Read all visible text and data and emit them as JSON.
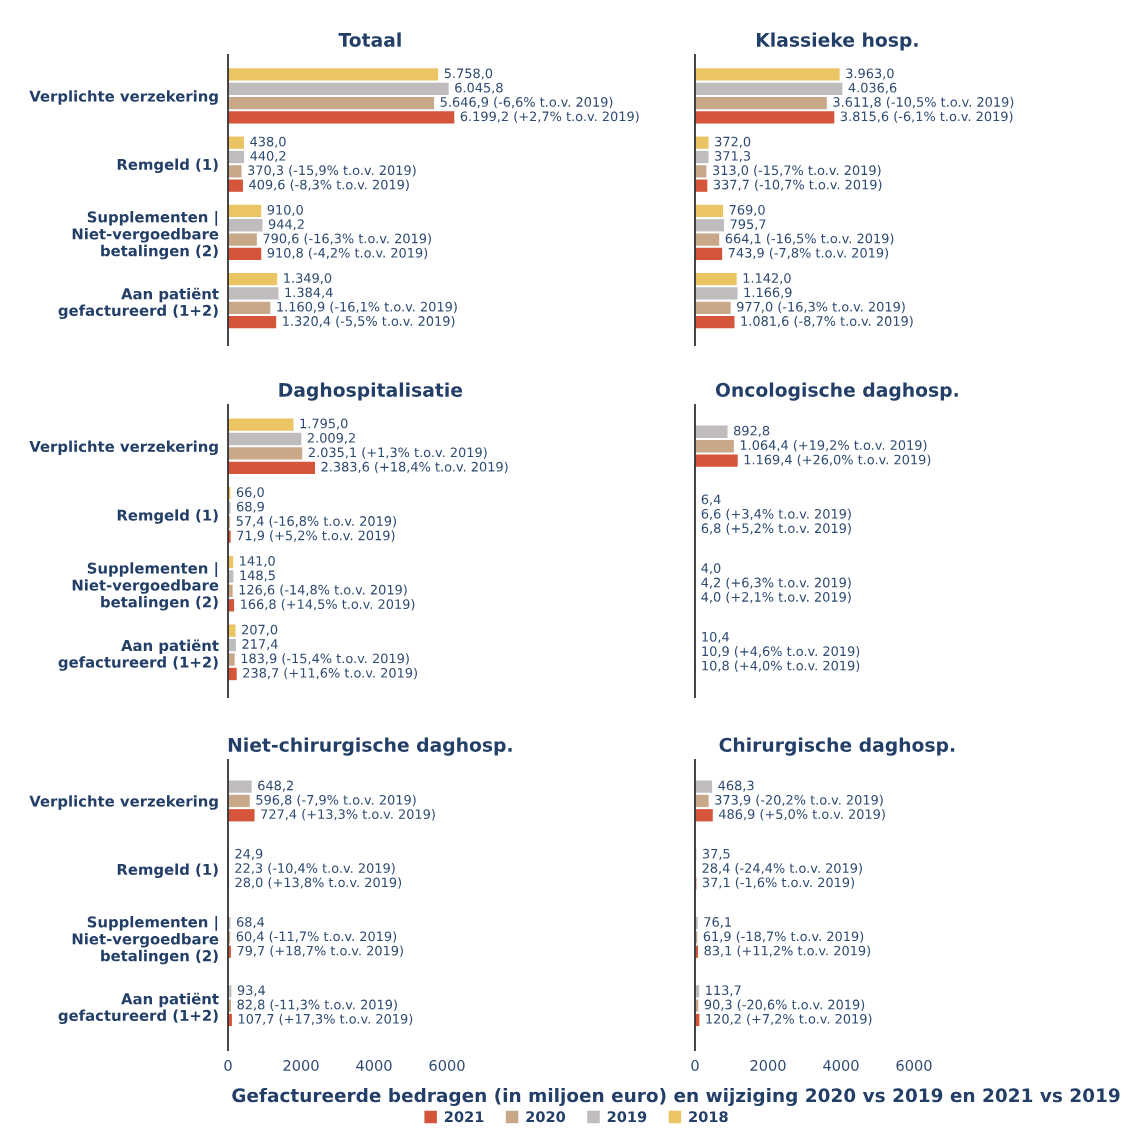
{
  "chart_data": [
    {
      "type": "bar",
      "orientation": "horizontal",
      "title": "Totaal",
      "legend": "bottom",
      "categories": [
        "Verplichte verzekering",
        "Remgeld (1)",
        "Supplementen |\nNiet-vergoedbare\nbetalingen (2)",
        "Aan patiënt\ngefactureerd (1+2)"
      ],
      "tick_labels": "y",
      "series": [
        {
          "name": "2018",
          "color": "#ebc464",
          "values": [
            5758.0,
            438.0,
            910.0,
            1349.0
          ],
          "value_labels": [
            "5.758,0",
            "438,0",
            "910,0",
            "1.349,0"
          ]
        },
        {
          "name": "2019",
          "color": "#c0bcbd",
          "values": [
            6045.8,
            440.2,
            944.2,
            1384.4
          ],
          "value_labels": [
            "6.045,8",
            "440,2",
            "944,2",
            "1.384,4"
          ]
        },
        {
          "name": "2020",
          "color": "#c9a88a",
          "values": [
            5646.9,
            370.3,
            790.6,
            1160.9
          ],
          "value_labels": [
            "5.646,9 (-6,6% t.o.v. 2019)",
            "370,3 (-15,9% t.o.v. 2019)",
            "790,6 (-16,3% t.o.v. 2019)",
            "1.160,9 (-16,1% t.o.v. 2019)"
          ]
        },
        {
          "name": "2021",
          "color": "#d4553a",
          "values": [
            6199.2,
            409.6,
            910.8,
            1320.4
          ],
          "value_labels": [
            "6.199,2 (+2,7% t.o.v. 2019)",
            "409,6 (-8,3% t.o.v. 2019)",
            "910,8 (-4,2% t.o.v. 2019)",
            "1.320,4 (-5,5% t.o.v. 2019)"
          ]
        }
      ]
    },
    {
      "type": "bar",
      "orientation": "horizontal",
      "title": "Klassieke hosp.",
      "categories": [
        "Verplichte verzekering",
        "Remgeld (1)",
        "Supplementen |\nNiet-vergoedbare\nbetalingen (2)",
        "Aan patiënt\ngefactureerd (1+2)"
      ],
      "tick_labels": false,
      "series": [
        {
          "name": "2018",
          "color": "#ebc464",
          "values": [
            3963.0,
            372.0,
            769.0,
            1142.0
          ],
          "value_labels": [
            "3.963,0",
            "372,0",
            "769,0",
            "1.142,0"
          ]
        },
        {
          "name": "2019",
          "color": "#c0bcbd",
          "values": [
            4036.6,
            371.3,
            795.7,
            1166.9
          ],
          "value_labels": [
            "4.036,6",
            "371,3",
            "795,7",
            "1.166,9"
          ]
        },
        {
          "name": "2020",
          "color": "#c9a88a",
          "values": [
            3611.8,
            313.0,
            664.1,
            977.0
          ],
          "value_labels": [
            "3.611,8 (-10,5% t.o.v. 2019)",
            "313,0 (-15,7% t.o.v. 2019)",
            "664,1 (-16,5% t.o.v. 2019)",
            "977,0 (-16,3% t.o.v. 2019)"
          ]
        },
        {
          "name": "2021",
          "color": "#d4553a",
          "values": [
            3815.6,
            337.7,
            743.9,
            1081.6
          ],
          "value_labels": [
            "3.815,6 (-6,1% t.o.v. 2019)",
            "337,7 (-10,7% t.o.v. 2019)",
            "743,9 (-7,8% t.o.v. 2019)",
            "1.081,6 (-8,7% t.o.v. 2019)"
          ]
        }
      ]
    },
    {
      "type": "bar",
      "orientation": "horizontal",
      "title": "Daghospitalisatie",
      "categories": [
        "Verplichte verzekering",
        "Remgeld (1)",
        "Supplementen |\nNiet-vergoedbare\nbetalingen (2)",
        "Aan patiënt\ngefactureerd (1+2)"
      ],
      "tick_labels": "y",
      "series": [
        {
          "name": "2018",
          "color": "#ebc464",
          "values": [
            1795.0,
            66.0,
            141.0,
            207.0
          ],
          "value_labels": [
            "1.795,0",
            "66,0",
            "141,0",
            "207,0"
          ]
        },
        {
          "name": "2019",
          "color": "#c0bcbd",
          "values": [
            2009.2,
            68.9,
            148.5,
            217.4
          ],
          "value_labels": [
            "2.009,2",
            "68,9",
            "148,5",
            "217,4"
          ]
        },
        {
          "name": "2020",
          "color": "#c9a88a",
          "values": [
            2035.1,
            57.4,
            126.6,
            183.9
          ],
          "value_labels": [
            "2.035,1 (+1,3% t.o.v. 2019)",
            "57,4 (-16,8% t.o.v. 2019)",
            "126,6 (-14,8% t.o.v. 2019)",
            "183,9 (-15,4% t.o.v. 2019)"
          ]
        },
        {
          "name": "2021",
          "color": "#d4553a",
          "values": [
            2383.6,
            71.9,
            166.8,
            238.7
          ],
          "value_labels": [
            "2.383,6 (+18,4% t.o.v. 2019)",
            "71,9 (+5,2% t.o.v. 2019)",
            "166,8 (+14,5% t.o.v. 2019)",
            "238,7 (+11,6% t.o.v. 2019)"
          ]
        }
      ]
    },
    {
      "type": "bar",
      "orientation": "horizontal",
      "title": "Oncologische daghosp.",
      "categories": [
        "Verplichte verzekering",
        "Remgeld (1)",
        "Supplementen |\nNiet-vergoedbare\nbetalingen (2)",
        "Aan patiënt\ngefactureerd (1+2)"
      ],
      "tick_labels": false,
      "series": [
        {
          "name": "2019",
          "color": "#c0bcbd",
          "values": [
            892.8,
            6.4,
            4.0,
            10.4
          ],
          "value_labels": [
            "892,8",
            "6,4",
            "4,0",
            "10,4"
          ]
        },
        {
          "name": "2020",
          "color": "#c9a88a",
          "values": [
            1064.4,
            6.6,
            4.2,
            10.9
          ],
          "value_labels": [
            "1.064,4 (+19,2% t.o.v. 2019)",
            "6,6 (+3,4% t.o.v. 2019)",
            "4,2 (+6,3% t.o.v. 2019)",
            "10,9 (+4,6% t.o.v. 2019)"
          ]
        },
        {
          "name": "2021",
          "color": "#d4553a",
          "values": [
            1169.4,
            6.8,
            4.0,
            10.8
          ],
          "value_labels": [
            "1.169,4 (+26,0% t.o.v. 2019)",
            "6,8 (+5,2% t.o.v. 2019)",
            "4,0 (+2,1% t.o.v. 2019)",
            "10,8 (+4,0% t.o.v. 2019)"
          ]
        }
      ]
    },
    {
      "type": "bar",
      "orientation": "horizontal",
      "title": "Niet-chirurgische daghosp.",
      "xlabel": "Gefactureerde bedragen (in miljoen euro) en wijziging 2020 vs 2019 en 2021 vs 2019",
      "categories": [
        "Verplichte verzekering",
        "Remgeld (1)",
        "Supplementen |\nNiet-vergoedbare\nbetalingen (2)",
        "Aan patiënt\ngefactureerd (1+2)"
      ],
      "xlim": [
        0,
        6000
      ],
      "xticks": [
        0,
        2000,
        4000,
        6000
      ],
      "series": [
        {
          "name": "2019",
          "color": "#c0bcbd",
          "values": [
            648.2,
            24.9,
            68.4,
            93.4
          ],
          "value_labels": [
            "648,2",
            "24,9",
            "68,4",
            "93,4"
          ]
        },
        {
          "name": "2020",
          "color": "#c9a88a",
          "values": [
            596.8,
            22.3,
            60.4,
            82.8
          ],
          "value_labels": [
            "596,8 (-7,9% t.o.v. 2019)",
            "22,3 (-10,4% t.o.v. 2019)",
            "60,4 (-11,7% t.o.v. 2019)",
            "82,8 (-11,3% t.o.v. 2019)"
          ]
        },
        {
          "name": "2021",
          "color": "#d4553a",
          "values": [
            727.4,
            28.0,
            79.7,
            107.7
          ],
          "value_labels": [
            "727,4 (+13,3% t.o.v. 2019)",
            "28,0 (+13,8% t.o.v. 2019)",
            "79,7 (+18,7% t.o.v. 2019)",
            "107,7 (+17,3% t.o.v. 2019)"
          ]
        }
      ]
    },
    {
      "type": "bar",
      "orientation": "horizontal",
      "title": "Chirurgische daghosp.",
      "categories": [
        "Verplichte verzekering",
        "Remgeld (1)",
        "Supplementen |\nNiet-vergoedbare\nbetalingen (2)",
        "Aan patiënt\ngefactureerd (1+2)"
      ],
      "xlim": [
        0,
        6000
      ],
      "xticks": [
        0,
        2000,
        4000,
        6000
      ],
      "tick_labels": "x",
      "series": [
        {
          "name": "2019",
          "color": "#c0bcbd",
          "values": [
            468.3,
            37.5,
            76.1,
            113.7
          ],
          "value_labels": [
            "468,3",
            "37,5",
            "76,1",
            "113,7"
          ]
        },
        {
          "name": "2020",
          "color": "#c9a88a",
          "values": [
            373.9,
            28.4,
            61.9,
            90.3
          ],
          "value_labels": [
            "373,9 (-20,2% t.o.v. 2019)",
            "28,4 (-24,4% t.o.v. 2019)",
            "61,9 (-18,7% t.o.v. 2019)",
            "90,3 (-20,6% t.o.v. 2019)"
          ]
        },
        {
          "name": "2021",
          "color": "#d4553a",
          "values": [
            486.9,
            37.1,
            83.1,
            120.2
          ],
          "value_labels": [
            "486,9 (+5,0% t.o.v. 2019)",
            "37,1 (-1,6% t.o.v. 2019)",
            "83,1 (+11,2% t.o.v. 2019)",
            "120,2 (+7,2% t.o.v. 2019)"
          ]
        }
      ]
    }
  ]
}
